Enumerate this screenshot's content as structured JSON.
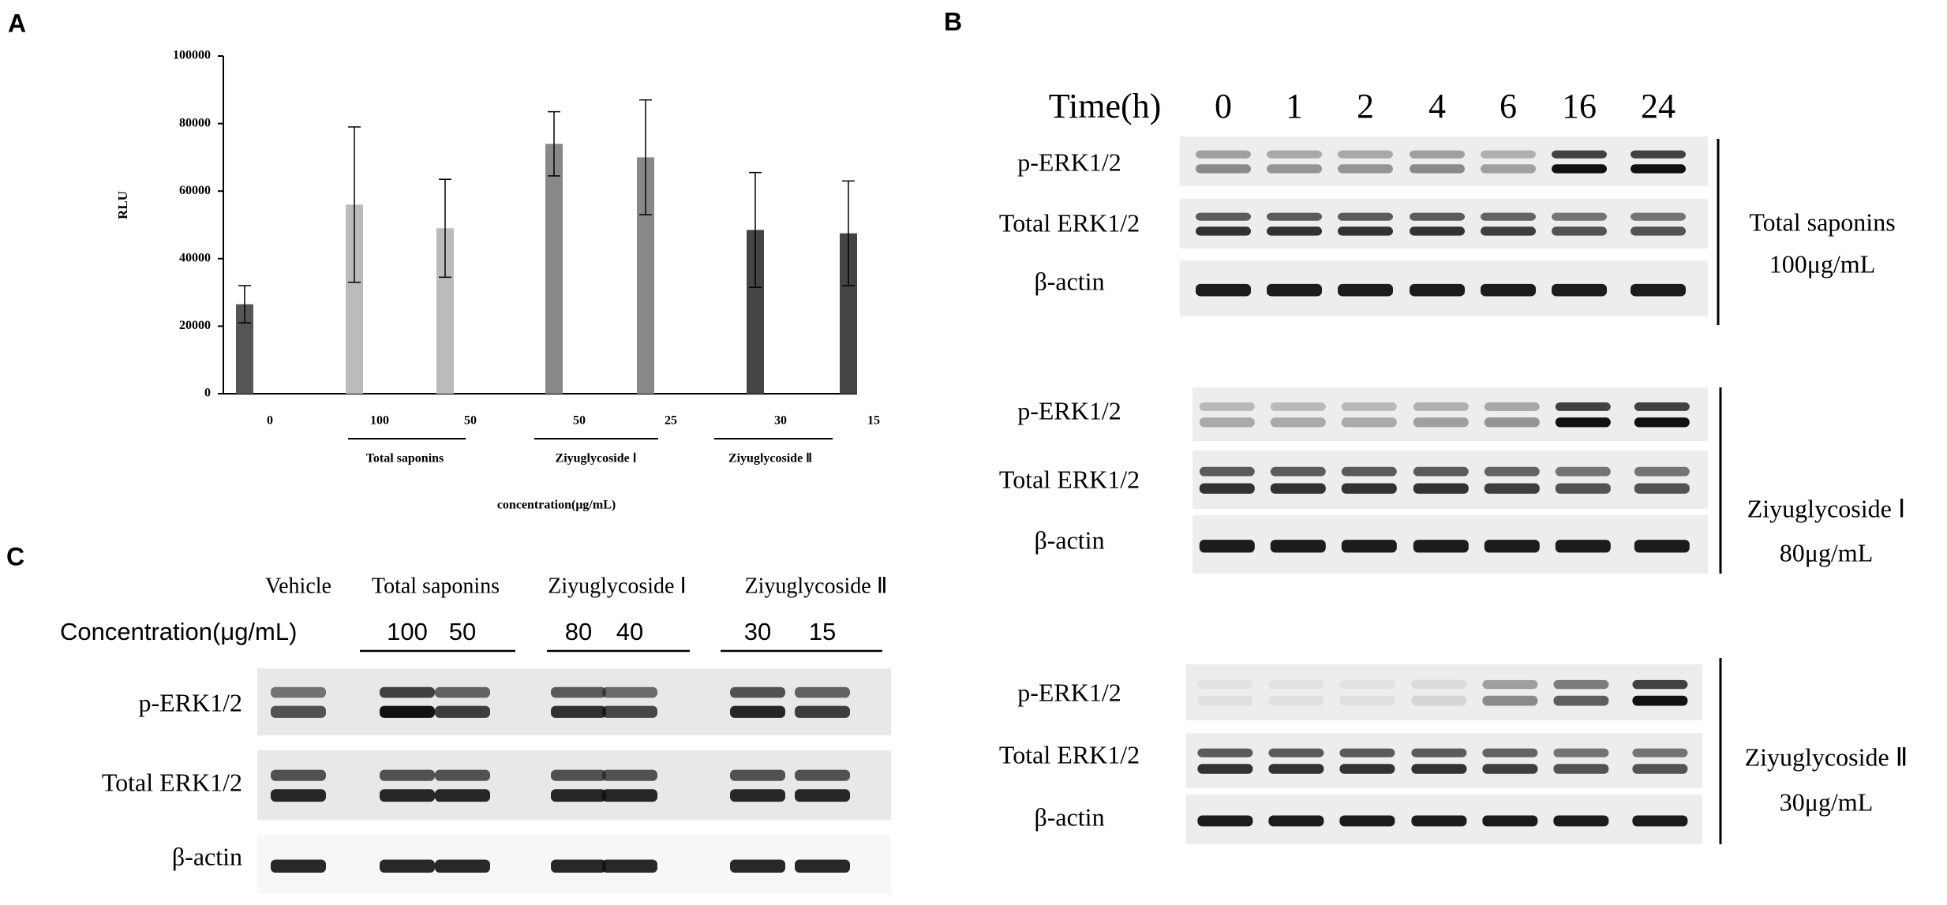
{
  "panel_labels": [
    "A",
    "B",
    "C"
  ],
  "chart_data": {
    "type": "bar",
    "y_label": "RLU",
    "x_label": "concentration(μg/mL)",
    "categories": [
      "0",
      "100",
      "50",
      "50",
      "25",
      "30",
      "15"
    ],
    "group_labels": [
      "Total saponins",
      "Ziyuglycoside Ⅰ",
      "Ziyuglycoside Ⅱ"
    ],
    "values": [
      26500,
      56000,
      49000,
      74000,
      70000,
      48500,
      47500
    ],
    "errors": [
      5500,
      23000,
      14500,
      9500,
      17000,
      17000,
      15500
    ],
    "colors": [
      "#555555",
      "#bbbbbb",
      "#bbbbbb",
      "#888888",
      "#888888",
      "#444444",
      "#444444"
    ],
    "ylim": [
      0,
      100000
    ],
    "yticks": [
      0,
      20000,
      40000,
      60000,
      80000,
      100000
    ]
  },
  "panel_b": {
    "time_label": "Time(h)",
    "times": [
      "0",
      "1",
      "2",
      "4",
      "6",
      "16",
      "24"
    ],
    "blots": [
      {
        "rows": [
          "p-ERK1/2",
          "Total ERK1/2",
          "β-actin"
        ],
        "treatment": "Total saponins",
        "dose": "100μg/mL"
      },
      {
        "rows": [
          "p-ERK1/2",
          "Total ERK1/2",
          "β-actin"
        ],
        "treatment": "Ziyuglycoside Ⅰ",
        "dose": "80μg/mL"
      },
      {
        "rows": [
          "p-ERK1/2",
          "Total ERK1/2",
          "β-actin"
        ],
        "treatment": "Ziyuglycoside Ⅱ",
        "dose": "30μg/mL"
      }
    ]
  },
  "panel_c": {
    "groups": [
      "Vehicle",
      "Total saponins",
      "Ziyuglycoside Ⅰ",
      "Ziyuglycoside Ⅱ"
    ],
    "concentration_label": "Concentration(μg/mL)",
    "concentrations": [
      "100",
      "50",
      "80",
      "40",
      "30",
      "15"
    ],
    "rows": [
      "p-ERK1/2",
      "Total ERK1/2",
      "β-actin"
    ]
  }
}
